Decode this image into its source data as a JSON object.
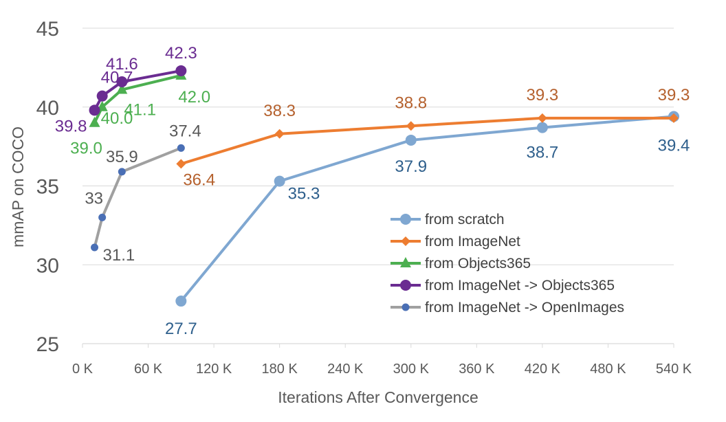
{
  "chart_data": {
    "type": "line",
    "title": "",
    "xlabel": "Iterations After Convergence",
    "ylabel": "mmAP on COCO",
    "xlim": [
      0,
      540000
    ],
    "ylim": [
      25,
      45
    ],
    "x_ticks": [
      {
        "value": 0,
        "label": "0 K"
      },
      {
        "value": 60000,
        "label": "60 K"
      },
      {
        "value": 120000,
        "label": "120 K"
      },
      {
        "value": 180000,
        "label": "180 K"
      },
      {
        "value": 240000,
        "label": "240 K"
      },
      {
        "value": 300000,
        "label": "300 K"
      },
      {
        "value": 360000,
        "label": "360 K"
      },
      {
        "value": 420000,
        "label": "420 K"
      },
      {
        "value": 480000,
        "label": "480 K"
      },
      {
        "value": 540000,
        "label": "540 K"
      }
    ],
    "y_ticks": [
      {
        "value": 25,
        "label": "25"
      },
      {
        "value": 30,
        "label": "30"
      },
      {
        "value": 35,
        "label": "35"
      },
      {
        "value": 40,
        "label": "40"
      },
      {
        "value": 45,
        "label": "45"
      }
    ],
    "grid": "horizontal",
    "legend_position": "bottom-right",
    "series": [
      {
        "name": "from scratch",
        "color": "#7fa7d1",
        "marker": "circle",
        "points": [
          {
            "x": 90000,
            "y": 27.7,
            "label": "27.7"
          },
          {
            "x": 180000,
            "y": 35.3,
            "label": "35.3"
          },
          {
            "x": 300000,
            "y": 37.9,
            "label": "37.9"
          },
          {
            "x": 420000,
            "y": 38.7,
            "label": "38.7"
          },
          {
            "x": 540000,
            "y": 39.4,
            "label": "39.4"
          }
        ]
      },
      {
        "name": "from ImageNet",
        "color": "#ed7d31",
        "marker": "diamond",
        "points": [
          {
            "x": 90000,
            "y": 36.4,
            "label": "36.4"
          },
          {
            "x": 180000,
            "y": 38.3,
            "label": "38.3"
          },
          {
            "x": 300000,
            "y": 38.8,
            "label": "38.8"
          },
          {
            "x": 420000,
            "y": 39.3,
            "label": "39.3"
          },
          {
            "x": 540000,
            "y": 39.3,
            "label": "39.3"
          }
        ]
      },
      {
        "name": "from Objects365",
        "color": "#4caf50",
        "marker": "triangle",
        "points": [
          {
            "x": 11000,
            "y": 39.0,
            "label": "39.0"
          },
          {
            "x": 18000,
            "y": 40.0,
            "label": "40.0"
          },
          {
            "x": 36000,
            "y": 41.1,
            "label": "41.1"
          },
          {
            "x": 90000,
            "y": 42.0,
            "label": "42.0"
          }
        ]
      },
      {
        "name": "from ImageNet -> Objects365",
        "color": "#6a2c91",
        "marker": "circle",
        "points": [
          {
            "x": 11000,
            "y": 39.8,
            "label": "39.8"
          },
          {
            "x": 18000,
            "y": 40.7,
            "label": "40.7"
          },
          {
            "x": 36000,
            "y": 41.6,
            "label": "41.6"
          },
          {
            "x": 90000,
            "y": 42.3,
            "label": "42.3"
          }
        ]
      },
      {
        "name": "from ImageNet -> OpenImages",
        "color": "#a0a0a0",
        "marker_color": "#4a6fb5",
        "marker": "small-circle",
        "points": [
          {
            "x": 11000,
            "y": 31.1,
            "label": "31.1"
          },
          {
            "x": 18000,
            "y": 33.0,
            "label": "33"
          },
          {
            "x": 36000,
            "y": 35.9,
            "label": "35.9"
          },
          {
            "x": 90000,
            "y": 37.4,
            "label": "37.4"
          }
        ]
      }
    ]
  }
}
